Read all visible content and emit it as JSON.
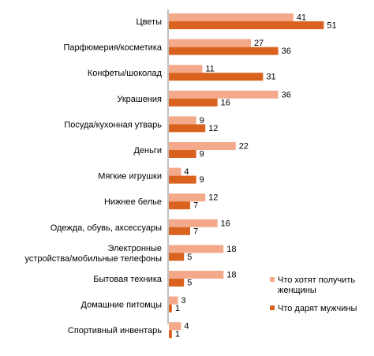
{
  "chart_data": {
    "type": "bar",
    "orientation": "horizontal",
    "title": "",
    "categories": [
      "Цветы",
      "Парфюмерия/косметика",
      "Конфеты/шоколад",
      "Украшения",
      "Посуда/кухонная утварь",
      "Деньги",
      "Мягкие игрушки",
      "Нижнее белье",
      "Одежда, обувь, аксессуары",
      "Электронные устройства/мобильные телефоны",
      "Бытовая техника",
      "Домашние питомцы",
      "Спортивный инвентарь"
    ],
    "series": [
      {
        "name": "Что хотят получить женщины",
        "color": "#f4a98a",
        "values": [
          41,
          27,
          11,
          36,
          9,
          22,
          4,
          12,
          16,
          18,
          18,
          3,
          4
        ]
      },
      {
        "name": "Что дарят мужчины",
        "color": "#d9621e",
        "values": [
          51,
          36,
          31,
          16,
          12,
          9,
          9,
          7,
          7,
          5,
          5,
          1,
          1
        ]
      }
    ],
    "xlim": [
      0,
      55
    ],
    "grid": false,
    "legend_position": "right"
  }
}
